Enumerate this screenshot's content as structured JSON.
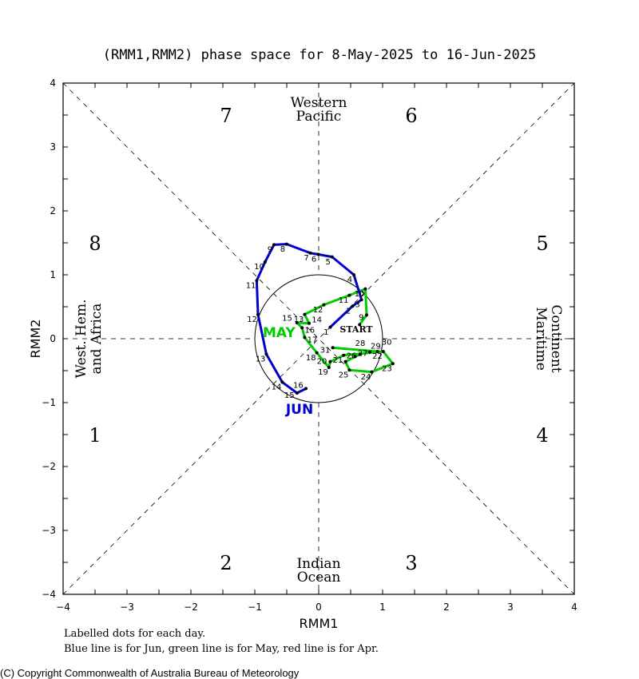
{
  "chart_data": {
    "type": "line",
    "title": "(RMM1,RMM2) phase space for  8-May-2025 to 16-Jun-2025",
    "xlabel": "RMM1",
    "ylabel": "RMM2",
    "xlim": [
      -4,
      4
    ],
    "ylim": [
      -4,
      4
    ],
    "xticks": [
      "-4",
      "-3",
      "-2",
      "-1",
      "0",
      "1",
      "2",
      "3",
      "4"
    ],
    "yticks": [
      "-4",
      "-3",
      "-2",
      "-1",
      "0",
      "1",
      "2",
      "3",
      "4"
    ],
    "phase_labels": [
      "1",
      "2",
      "3",
      "4",
      "5",
      "6",
      "7",
      "8"
    ],
    "regions": {
      "top": [
        "Western",
        "Pacific"
      ],
      "bottom": [
        "Indian",
        "Ocean"
      ],
      "left": [
        "West. Hem.",
        "and Africa"
      ],
      "right": [
        "Maritime",
        "Continent"
      ]
    },
    "start_label": "START",
    "notes": [
      "Labelled dots for each day.",
      "Blue line is for Jun, green line is for May, red line is for Apr."
    ],
    "copyright": "(C) Copyright Commonwealth of Australia Bureau of Meteorology",
    "series": [
      {
        "name": "May",
        "month_label": "MAY",
        "color": "#00cc00",
        "days": [
          8,
          9,
          10,
          11,
          12,
          13,
          14,
          15,
          16,
          17,
          18,
          19,
          20,
          21,
          22,
          23,
          24,
          25,
          26,
          27,
          28,
          29,
          30,
          31
        ],
        "points": [
          [
            0.64,
            0.22
          ],
          [
            0.75,
            0.37
          ],
          [
            0.73,
            0.78
          ],
          [
            0.48,
            0.68
          ],
          [
            0.08,
            0.53
          ],
          [
            -0.22,
            0.38
          ],
          [
            -0.15,
            0.24
          ],
          [
            -0.34,
            0.25
          ],
          [
            -0.26,
            0.17
          ],
          [
            -0.22,
            0.02
          ],
          [
            -0.03,
            -0.22
          ],
          [
            0.16,
            -0.45
          ],
          [
            0.18,
            -0.36
          ],
          [
            0.39,
            -0.26
          ],
          [
            1.01,
            -0.2
          ],
          [
            1.16,
            -0.39
          ],
          [
            0.83,
            -0.52
          ],
          [
            0.48,
            -0.49
          ],
          [
            0.42,
            -0.36
          ],
          [
            0.57,
            -0.28
          ],
          [
            0.65,
            -0.24
          ],
          [
            0.8,
            -0.21
          ],
          [
            0.92,
            -0.2
          ],
          [
            0.22,
            -0.14
          ]
        ]
      },
      {
        "name": "Jun",
        "month_label": "JUN",
        "color": "#0000cc",
        "days": [
          1,
          2,
          3,
          4,
          5,
          6,
          7,
          8,
          9,
          10,
          11,
          12,
          13,
          14,
          15,
          16
        ],
        "points": [
          [
            0.18,
            0.18
          ],
          [
            0.53,
            0.51
          ],
          [
            0.67,
            0.61
          ],
          [
            0.55,
            1.0
          ],
          [
            0.21,
            1.28
          ],
          [
            -0.01,
            1.32
          ],
          [
            -0.13,
            1.34
          ],
          [
            -0.5,
            1.48
          ],
          [
            -0.7,
            1.47
          ],
          [
            -0.84,
            1.2
          ],
          [
            -0.97,
            0.91
          ],
          [
            -0.95,
            0.38
          ],
          [
            -0.82,
            -0.24
          ],
          [
            -0.57,
            -0.68
          ],
          [
            -0.34,
            -0.85
          ],
          [
            -0.2,
            -0.78
          ]
        ]
      }
    ]
  }
}
